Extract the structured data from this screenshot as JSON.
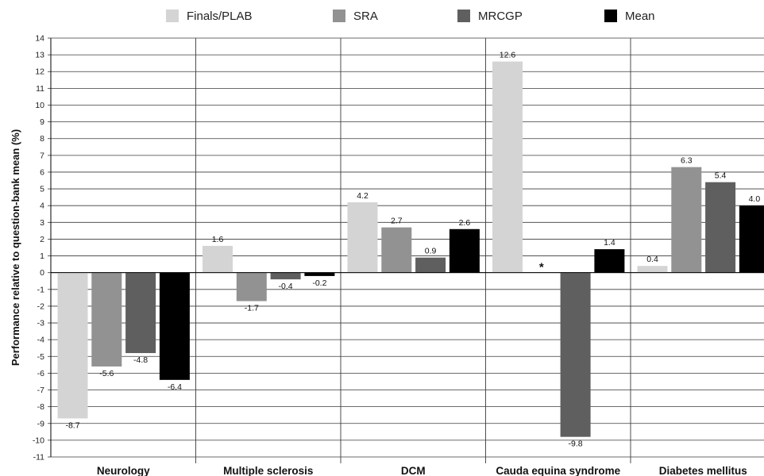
{
  "chart_data": {
    "type": "bar",
    "title": "",
    "xlabel": "",
    "ylabel": "Performance relative to question-bank mean (%)",
    "ylim": [
      -11,
      14
    ],
    "yticks": [
      "14",
      "13",
      "12",
      "11",
      "10",
      "9",
      "8",
      "7",
      "6",
      "5",
      "4",
      "3",
      "2",
      "1",
      "0",
      "-1",
      "-2",
      "-3",
      "-4",
      "-5",
      "-6",
      "-7",
      "-8",
      "-9",
      "-10",
      "-11"
    ],
    "categories": [
      "Neurology",
      "Multiple sclerosis",
      "DCM",
      "Cauda equina syndrome",
      "Diabetes mellitus"
    ],
    "series": [
      {
        "name": "Finals/PLAB",
        "color": "#d4d4d4",
        "values": [
          -8.7,
          1.6,
          4.2,
          12.6,
          0.4
        ],
        "labels": [
          "-8.7",
          "1.6",
          "4.2",
          "12.6",
          "0.4"
        ]
      },
      {
        "name": "SRA",
        "color": "#929292",
        "values": [
          -5.6,
          -1.7,
          2.7,
          null,
          6.3
        ],
        "labels": [
          "-5.6",
          "-1.7",
          "2.7",
          "*",
          "6.3"
        ]
      },
      {
        "name": "MRCGP",
        "color": "#5f5f5f",
        "values": [
          -4.8,
          -0.4,
          0.9,
          -9.8,
          5.4
        ],
        "labels": [
          "-4.8",
          "-0.4",
          "0.9",
          "-9.8",
          "5.4"
        ]
      },
      {
        "name": "Mean",
        "color": "#000000",
        "values": [
          -6.4,
          -0.2,
          2.6,
          1.4,
          4.0
        ],
        "labels": [
          "-6.4",
          "-0.2",
          "2.6",
          "1.4",
          "4.0"
        ]
      }
    ],
    "grid": true,
    "legend_position": "top"
  }
}
